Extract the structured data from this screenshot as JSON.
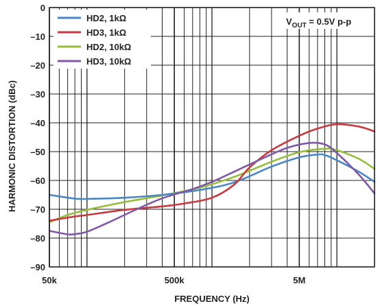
{
  "chart_data": {
    "type": "line",
    "xlabel": "FREQUENCY (Hz)",
    "ylabel": "HARMONIC DISTORTION (dBc)",
    "x_scale": "log",
    "xlim": [
      50000,
      20000000
    ],
    "ylim": [
      -90,
      0
    ],
    "grid": true,
    "legend_position": "top-left",
    "x_ticks": [
      {
        "value": 50000,
        "label": "50k"
      },
      {
        "value": 500000,
        "label": "500k"
      },
      {
        "value": 5000000,
        "label": "5M"
      }
    ],
    "y_ticks": [
      {
        "value": 0,
        "label": "0"
      },
      {
        "value": -10,
        "label": "–10"
      },
      {
        "value": -20,
        "label": "–20"
      },
      {
        "value": -30,
        "label": "–30"
      },
      {
        "value": -40,
        "label": "–40"
      },
      {
        "value": -50,
        "label": "–50"
      },
      {
        "value": -60,
        "label": "–60"
      },
      {
        "value": -70,
        "label": "–70"
      },
      {
        "value": -80,
        "label": "–80"
      },
      {
        "value": -90,
        "label": "–90"
      }
    ],
    "annotation": {
      "main": "V",
      "sub": "OUT",
      "rest": " = 0.5V p-p"
    },
    "series": [
      {
        "name": "HD2, 1kΩ",
        "color": "#4a86c5",
        "x": [
          50000,
          80000,
          100000,
          200000,
          400000,
          800000,
          1500000,
          3000000,
          5000000,
          7000000,
          8000000,
          10000000,
          15000000,
          20000000
        ],
        "y": [
          -65,
          -66.3,
          -66.4,
          -66,
          -65,
          -63.3,
          -60.7,
          -55.2,
          -52,
          -51,
          -51.2,
          -53,
          -57,
          -60.5
        ]
      },
      {
        "name": "HD3, 1kΩ",
        "color": "#c8393e",
        "x": [
          50000,
          80000,
          100000,
          200000,
          400000,
          600000,
          1000000,
          1500000,
          2000000,
          3000000,
          5000000,
          7000000,
          10000000,
          15000000,
          20000000
        ],
        "y": [
          -74,
          -72.5,
          -72,
          -70.2,
          -69,
          -68,
          -66,
          -61.5,
          -55.5,
          -49.5,
          -44.5,
          -42,
          -40.5,
          -41.3,
          -43
        ]
      },
      {
        "name": "HD2, 10kΩ",
        "color": "#94bd3c",
        "x": [
          50000,
          70000,
          100000,
          200000,
          400000,
          800000,
          1500000,
          3000000,
          5000000,
          8000000,
          10000000,
          15000000,
          20000000
        ],
        "y": [
          -74.5,
          -72,
          -70.2,
          -67.5,
          -65.2,
          -62.5,
          -58.8,
          -53.5,
          -50.2,
          -49,
          -49.5,
          -52.5,
          -56
        ]
      },
      {
        "name": "HD3, 10kΩ",
        "color": "#7d59a6",
        "x": [
          50000,
          70000,
          80000,
          100000,
          150000,
          250000,
          400000,
          700000,
          1000000,
          1500000,
          2500000,
          4000000,
          6000000,
          8000000,
          10000000,
          15000000,
          20000000
        ],
        "y": [
          -77.5,
          -78.7,
          -78.6,
          -77.8,
          -74.5,
          -70,
          -66.2,
          -63,
          -60.5,
          -57,
          -52.5,
          -48.7,
          -47,
          -47.5,
          -50.5,
          -58,
          -64.5
        ]
      }
    ]
  }
}
